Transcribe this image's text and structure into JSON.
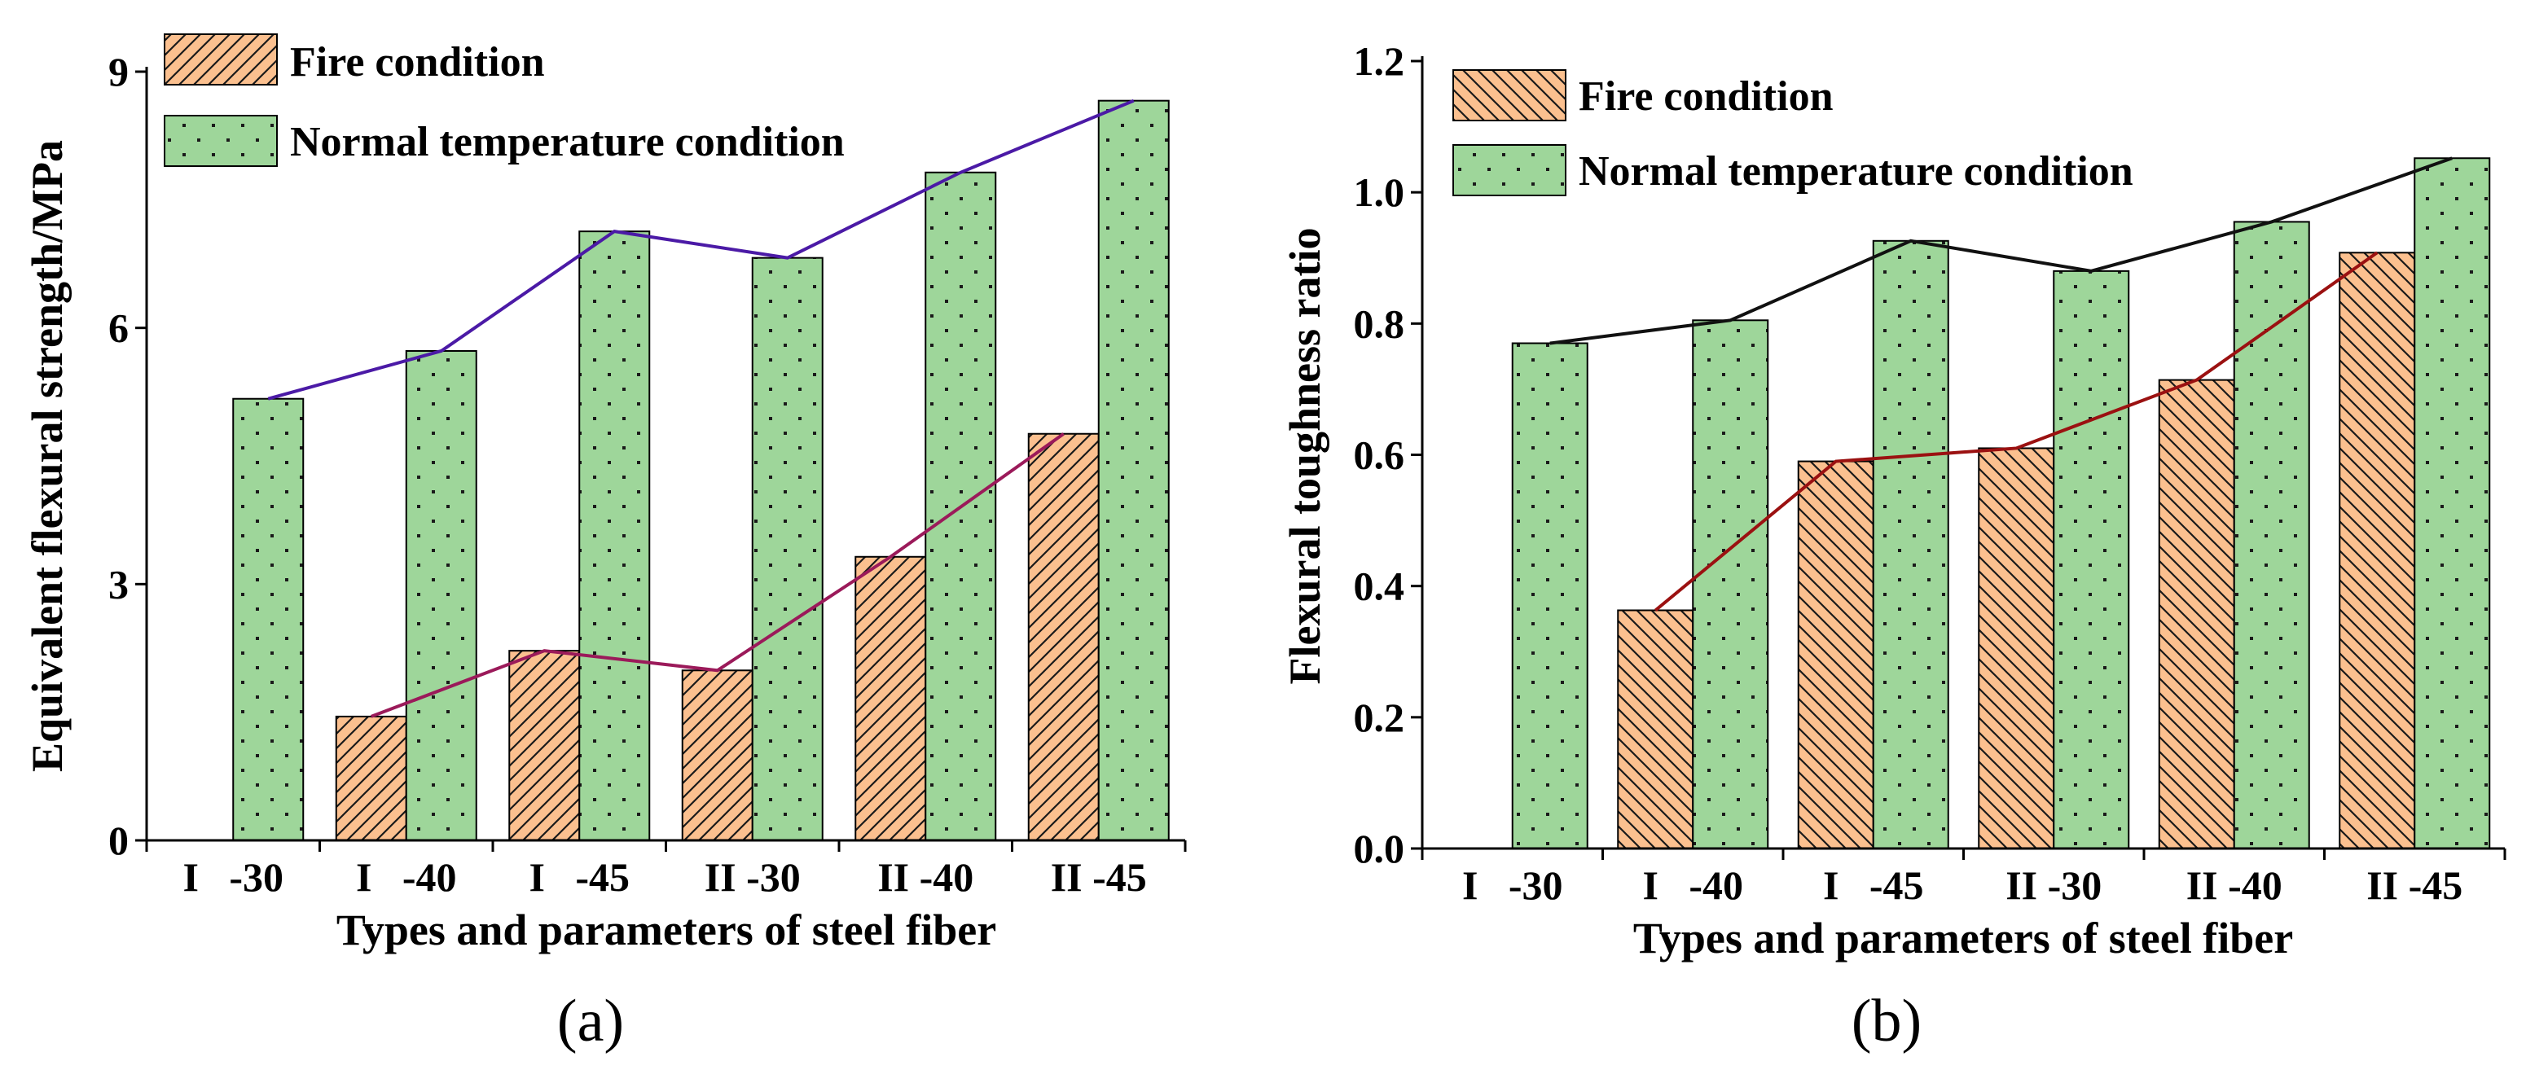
{
  "chart_data": [
    {
      "type": "bar",
      "panel_label": "(a)",
      "categories": [
        "I   -30",
        "I   -40",
        "I   -45",
        "II -30",
        "II -40",
        "II -45"
      ],
      "ylabel": "Equivalent flexural strength/MPa",
      "xlabel": "Types and parameters of steel fiber",
      "ylim": [
        0,
        9
      ],
      "yticks": [
        "0",
        "3",
        "6",
        "9"
      ],
      "legend_position": "top-left",
      "series": [
        {
          "name": "Fire condition",
          "values": [
            null,
            1.45,
            2.22,
            1.99,
            3.32,
            4.76
          ],
          "fill": "#fbc08f",
          "pattern": "diagonal-up",
          "line_color": "#9b1a5a"
        },
        {
          "name": "Normal temperature condition",
          "values": [
            5.17,
            5.73,
            7.13,
            6.82,
            7.82,
            8.66
          ],
          "fill": "#9ed69a",
          "pattern": "dots",
          "line_color": "#4b1aa6"
        }
      ]
    },
    {
      "type": "bar",
      "panel_label": "(b)",
      "categories": [
        "I   -30",
        "I   -40",
        "I   -45",
        "II -30",
        "II -40",
        "II -45"
      ],
      "ylabel": "Flexural toughness ratio",
      "xlabel": "Types and parameters of steel fiber",
      "ylim": [
        0,
        1.2
      ],
      "yticks": [
        "0.0",
        "0.2",
        "0.4",
        "0.6",
        "0.8",
        "1.0",
        "1.2"
      ],
      "legend_position": "top-left",
      "series": [
        {
          "name": "Fire condition",
          "values": [
            null,
            0.363,
            0.59,
            0.61,
            0.714,
            0.908
          ],
          "fill": "#fbc08f",
          "pattern": "diagonal-down",
          "line_color": "#9b1111"
        },
        {
          "name": "Normal temperature condition",
          "values": [
            0.77,
            0.805,
            0.926,
            0.88,
            0.955,
            1.052
          ],
          "fill": "#9ed69a",
          "pattern": "dots",
          "line_color": "#111111"
        }
      ]
    }
  ]
}
